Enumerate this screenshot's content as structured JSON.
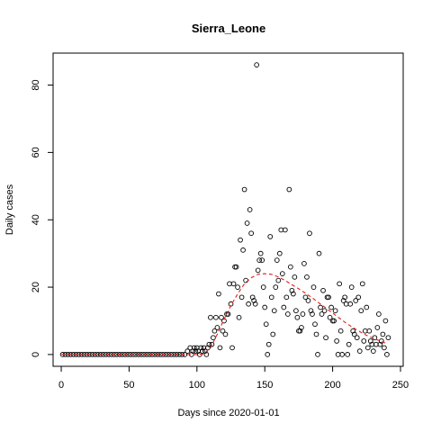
{
  "chart_data": {
    "type": "scatter",
    "title": "Sierra_Leone",
    "xlabel": "Days since 2020-01-01",
    "ylabel": "Daily cases",
    "xlim": [
      -6,
      252
    ],
    "ylim": [
      -3.5,
      89.5
    ],
    "xticks": [
      0,
      50,
      100,
      150,
      200,
      250
    ],
    "yticks": [
      0,
      20,
      40,
      60,
      80
    ],
    "grid": false,
    "points": [
      [
        1,
        0
      ],
      [
        3,
        0
      ],
      [
        5,
        0
      ],
      [
        7,
        0
      ],
      [
        9,
        0
      ],
      [
        11,
        0
      ],
      [
        13,
        0
      ],
      [
        15,
        0
      ],
      [
        17,
        0
      ],
      [
        19,
        0
      ],
      [
        21,
        0
      ],
      [
        23,
        0
      ],
      [
        25,
        0
      ],
      [
        27,
        0
      ],
      [
        29,
        0
      ],
      [
        31,
        0
      ],
      [
        33,
        0
      ],
      [
        35,
        0
      ],
      [
        37,
        0
      ],
      [
        39,
        0
      ],
      [
        41,
        0
      ],
      [
        43,
        0
      ],
      [
        45,
        0
      ],
      [
        47,
        0
      ],
      [
        49,
        0
      ],
      [
        51,
        0
      ],
      [
        53,
        0
      ],
      [
        55,
        0
      ],
      [
        57,
        0
      ],
      [
        59,
        0
      ],
      [
        61,
        0
      ],
      [
        63,
        0
      ],
      [
        65,
        0
      ],
      [
        67,
        0
      ],
      [
        69,
        0
      ],
      [
        71,
        0
      ],
      [
        73,
        0
      ],
      [
        75,
        0
      ],
      [
        77,
        0
      ],
      [
        79,
        0
      ],
      [
        81,
        0
      ],
      [
        83,
        0
      ],
      [
        85,
        0
      ],
      [
        87,
        0
      ],
      [
        89,
        0
      ],
      [
        91,
        0
      ],
      [
        93,
        1
      ],
      [
        95,
        2
      ],
      [
        96,
        0
      ],
      [
        97,
        1
      ],
      [
        98,
        2
      ],
      [
        99,
        1
      ],
      [
        100,
        2
      ],
      [
        101,
        1
      ],
      [
        102,
        0
      ],
      [
        103,
        2
      ],
      [
        104,
        1
      ],
      [
        105,
        2
      ],
      [
        106,
        1
      ],
      [
        107,
        0
      ],
      [
        108,
        2
      ],
      [
        109,
        3
      ],
      [
        110,
        11
      ],
      [
        111,
        3
      ],
      [
        112,
        5
      ],
      [
        113,
        7
      ],
      [
        114,
        11
      ],
      [
        115,
        8
      ],
      [
        116,
        18
      ],
      [
        117,
        2
      ],
      [
        118,
        11
      ],
      [
        119,
        7
      ],
      [
        120,
        10
      ],
      [
        121,
        6
      ],
      [
        122,
        12
      ],
      [
        123,
        12
      ],
      [
        124,
        21
      ],
      [
        125,
        15
      ],
      [
        126,
        2
      ],
      [
        127,
        21
      ],
      [
        128,
        26
      ],
      [
        129,
        26
      ],
      [
        130,
        20
      ],
      [
        131,
        11
      ],
      [
        132,
        34
      ],
      [
        133,
        17
      ],
      [
        134,
        31
      ],
      [
        135,
        49
      ],
      [
        136,
        22
      ],
      [
        137,
        39
      ],
      [
        138,
        15
      ],
      [
        139,
        43
      ],
      [
        140,
        36
      ],
      [
        141,
        17
      ],
      [
        142,
        16
      ],
      [
        143,
        15
      ],
      [
        144,
        86
      ],
      [
        145,
        25
      ],
      [
        146,
        28
      ],
      [
        147,
        30
      ],
      [
        148,
        28
      ],
      [
        149,
        20
      ],
      [
        150,
        14
      ],
      [
        151,
        9
      ],
      [
        152,
        0
      ],
      [
        153,
        3
      ],
      [
        154,
        35
      ],
      [
        155,
        17
      ],
      [
        156,
        6
      ],
      [
        157,
        13
      ],
      [
        158,
        20
      ],
      [
        159,
        28
      ],
      [
        160,
        22
      ],
      [
        161,
        30
      ],
      [
        162,
        37
      ],
      [
        163,
        24
      ],
      [
        164,
        14
      ],
      [
        165,
        37
      ],
      [
        166,
        17
      ],
      [
        167,
        12
      ],
      [
        168,
        49
      ],
      [
        169,
        26
      ],
      [
        170,
        19
      ],
      [
        171,
        18
      ],
      [
        172,
        23
      ],
      [
        173,
        13
      ],
      [
        174,
        11
      ],
      [
        175,
        7
      ],
      [
        176,
        7
      ],
      [
        177,
        8
      ],
      [
        178,
        12
      ],
      [
        179,
        27
      ],
      [
        180,
        17
      ],
      [
        181,
        23
      ],
      [
        182,
        16
      ],
      [
        183,
        36
      ],
      [
        184,
        13
      ],
      [
        185,
        12
      ],
      [
        186,
        20
      ],
      [
        187,
        9
      ],
      [
        188,
        6
      ],
      [
        189,
        0
      ],
      [
        190,
        30
      ],
      [
        191,
        14
      ],
      [
        192,
        12
      ],
      [
        193,
        19
      ],
      [
        194,
        13
      ],
      [
        195,
        5
      ],
      [
        196,
        17
      ],
      [
        197,
        17
      ],
      [
        198,
        11
      ],
      [
        199,
        14
      ],
      [
        200,
        10
      ],
      [
        201,
        10
      ],
      [
        202,
        13
      ],
      [
        203,
        4
      ],
      [
        204,
        0
      ],
      [
        205,
        21
      ],
      [
        206,
        7
      ],
      [
        207,
        0
      ],
      [
        208,
        16
      ],
      [
        209,
        17
      ],
      [
        210,
        15
      ],
      [
        211,
        0
      ],
      [
        212,
        3
      ],
      [
        213,
        15
      ],
      [
        214,
        20
      ],
      [
        215,
        7
      ],
      [
        216,
        6
      ],
      [
        217,
        16
      ],
      [
        218,
        5
      ],
      [
        219,
        17
      ],
      [
        220,
        1
      ],
      [
        221,
        13
      ],
      [
        222,
        21
      ],
      [
        223,
        4
      ],
      [
        224,
        7
      ],
      [
        225,
        14
      ],
      [
        226,
        2
      ],
      [
        227,
        7
      ],
      [
        228,
        4
      ],
      [
        229,
        3
      ],
      [
        230,
        1
      ],
      [
        231,
        5
      ],
      [
        232,
        3
      ],
      [
        233,
        8
      ],
      [
        234,
        12
      ],
      [
        235,
        3
      ],
      [
        236,
        4
      ],
      [
        237,
        6
      ],
      [
        238,
        2
      ],
      [
        239,
        10
      ],
      [
        240,
        0
      ],
      [
        241,
        5
      ]
    ],
    "fit_line": {
      "style": "dashed",
      "color": "#e0201b",
      "x": [
        0,
        10,
        20,
        30,
        40,
        50,
        60,
        70,
        80,
        90,
        100,
        105,
        110,
        115,
        120,
        125,
        130,
        135,
        140,
        145,
        150,
        155,
        160,
        165,
        170,
        175,
        180,
        185,
        190,
        195,
        200,
        205,
        210,
        215,
        220,
        225,
        230,
        235,
        240
      ],
      "y": [
        0,
        0,
        0,
        0,
        0,
        0,
        0,
        0,
        0,
        0,
        0,
        0.2,
        2,
        6,
        10.5,
        14.5,
        18,
        21,
        22.8,
        23.8,
        24,
        23.8,
        23,
        22,
        20.7,
        19.5,
        18.2,
        16.8,
        15.3,
        13.8,
        12.3,
        10.8,
        9.3,
        8,
        6.8,
        5.7,
        4.8,
        4,
        3.2
      ]
    }
  }
}
